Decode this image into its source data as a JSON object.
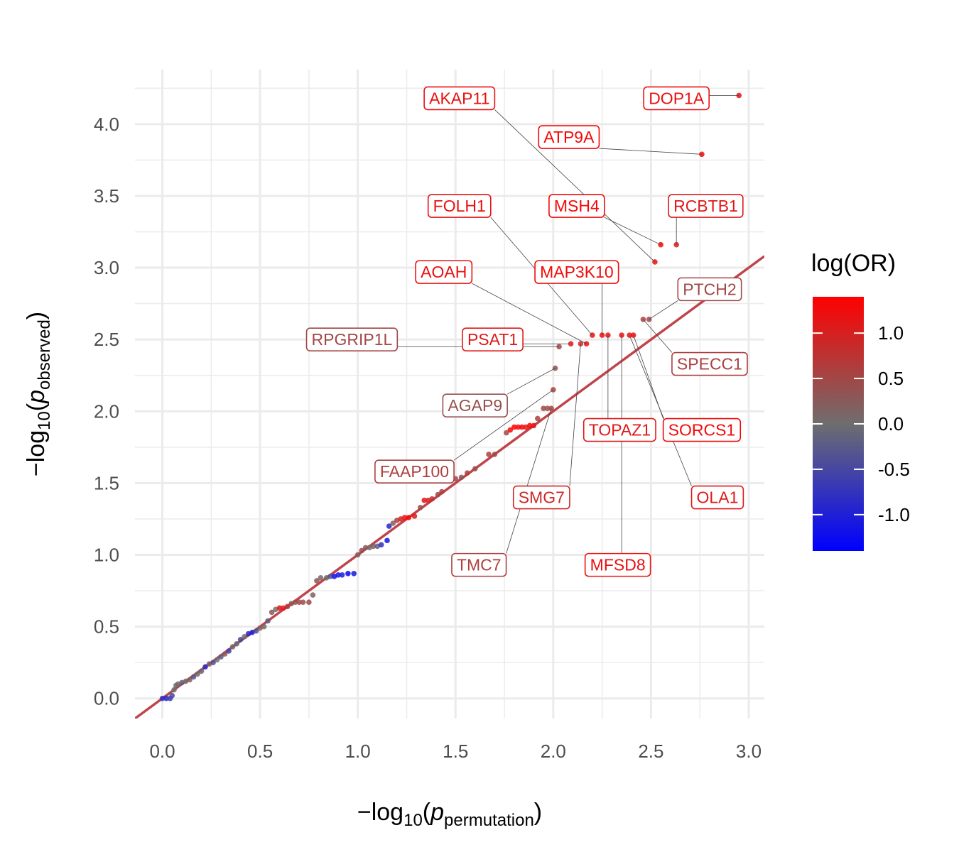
{
  "chart_data": {
    "type": "scatter",
    "title": "",
    "xlabel": "−log10(p permutation)",
    "ylabel": "−log10(p observed)",
    "xlabel_parts": {
      "prefix": "−log",
      "sub": "10",
      "open": "(",
      "p": "p",
      "psub": "permutation",
      "close": ")"
    },
    "ylabel_parts": {
      "prefix": "−log",
      "sub": "10",
      "open": "(",
      "p": "p",
      "psub": "observed",
      "close": ")"
    },
    "xlim": [
      -0.14,
      3.08
    ],
    "ylim": [
      -0.14,
      4.38
    ],
    "x_ticks": [
      0.0,
      0.5,
      1.0,
      1.5,
      2.0,
      2.5,
      3.0
    ],
    "x_tick_labels": [
      "0.0",
      "0.5",
      "1.0",
      "1.5",
      "2.0",
      "2.5",
      "3.0"
    ],
    "y_ticks": [
      0.0,
      0.5,
      1.0,
      1.5,
      2.0,
      2.5,
      3.0,
      3.5,
      4.0
    ],
    "y_tick_labels": [
      "0.0",
      "0.5",
      "1.0",
      "1.5",
      "2.0",
      "2.5",
      "3.0",
      "3.5",
      "4.0"
    ],
    "grid": true,
    "reference_line": {
      "slope": 1,
      "intercept": 0,
      "color": "#c0444a"
    },
    "color_scale": {
      "title": "log(OR)",
      "min": -1.4,
      "max": 1.4,
      "low_color": "#0000ff",
      "mid_color": "#6e6e6e",
      "high_color": "#ff0000",
      "ticks": [
        1.0,
        0.5,
        0.0,
        -0.5,
        -1.0
      ],
      "tick_labels": [
        "1.0",
        "0.5",
        "0.0",
        "-0.5",
        "-1.0"
      ],
      "legend_position": "right"
    },
    "points": [
      {
        "x": 0.0,
        "y": 0.0,
        "c": -0.8
      },
      {
        "x": 0.02,
        "y": 0.0,
        "c": -0.9
      },
      {
        "x": 0.04,
        "y": 0.0,
        "c": -0.7
      },
      {
        "x": 0.05,
        "y": 0.02,
        "c": -0.5
      },
      {
        "x": 0.06,
        "y": 0.06,
        "c": 0.0
      },
      {
        "x": 0.07,
        "y": 0.09,
        "c": -0.1
      },
      {
        "x": 0.08,
        "y": 0.1,
        "c": 0.1
      },
      {
        "x": 0.1,
        "y": 0.11,
        "c": -0.2
      },
      {
        "x": 0.12,
        "y": 0.12,
        "c": 0.0
      },
      {
        "x": 0.14,
        "y": 0.13,
        "c": 0.2
      },
      {
        "x": 0.16,
        "y": 0.15,
        "c": -0.3
      },
      {
        "x": 0.18,
        "y": 0.17,
        "c": 0.1
      },
      {
        "x": 0.2,
        "y": 0.19,
        "c": -0.1
      },
      {
        "x": 0.22,
        "y": 0.22,
        "c": -0.9
      },
      {
        "x": 0.24,
        "y": 0.24,
        "c": 0.2
      },
      {
        "x": 0.26,
        "y": 0.25,
        "c": -0.4
      },
      {
        "x": 0.28,
        "y": 0.27,
        "c": 0.0
      },
      {
        "x": 0.3,
        "y": 0.29,
        "c": -0.2
      },
      {
        "x": 0.32,
        "y": 0.31,
        "c": 0.3
      },
      {
        "x": 0.34,
        "y": 0.33,
        "c": -0.6
      },
      {
        "x": 0.36,
        "y": 0.36,
        "c": 0.1
      },
      {
        "x": 0.38,
        "y": 0.38,
        "c": -0.1
      },
      {
        "x": 0.4,
        "y": 0.41,
        "c": -0.5
      },
      {
        "x": 0.42,
        "y": 0.43,
        "c": 0.0
      },
      {
        "x": 0.44,
        "y": 0.45,
        "c": -0.9
      },
      {
        "x": 0.46,
        "y": 0.46,
        "c": -1.0
      },
      {
        "x": 0.48,
        "y": 0.47,
        "c": -0.4
      },
      {
        "x": 0.5,
        "y": 0.49,
        "c": 0.2
      },
      {
        "x": 0.52,
        "y": 0.5,
        "c": 0.1
      },
      {
        "x": 0.54,
        "y": 0.54,
        "c": -0.2
      },
      {
        "x": 0.56,
        "y": 0.6,
        "c": 0.3
      },
      {
        "x": 0.58,
        "y": 0.62,
        "c": 0.0
      },
      {
        "x": 0.6,
        "y": 0.63,
        "c": 1.2
      },
      {
        "x": 0.62,
        "y": 0.63,
        "c": 1.0
      },
      {
        "x": 0.64,
        "y": 0.64,
        "c": 0.8
      },
      {
        "x": 0.66,
        "y": 0.66,
        "c": 0.3
      },
      {
        "x": 0.68,
        "y": 0.67,
        "c": 0.4
      },
      {
        "x": 0.7,
        "y": 0.67,
        "c": 0.5
      },
      {
        "x": 0.72,
        "y": 0.67,
        "c": 0.4
      },
      {
        "x": 0.75,
        "y": 0.67,
        "c": 0.5
      },
      {
        "x": 0.77,
        "y": 0.72,
        "c": 0.2
      },
      {
        "x": 0.79,
        "y": 0.82,
        "c": 0.3
      },
      {
        "x": 0.81,
        "y": 0.84,
        "c": 0.1
      },
      {
        "x": 0.84,
        "y": 0.84,
        "c": 0.0
      },
      {
        "x": 0.86,
        "y": 0.85,
        "c": -0.3
      },
      {
        "x": 0.88,
        "y": 0.85,
        "c": -1.2
      },
      {
        "x": 0.9,
        "y": 0.86,
        "c": -1.1
      },
      {
        "x": 0.92,
        "y": 0.86,
        "c": -1.0
      },
      {
        "x": 0.95,
        "y": 0.87,
        "c": -1.3
      },
      {
        "x": 0.98,
        "y": 0.87,
        "c": -1.1
      },
      {
        "x": 1.0,
        "y": 1.0,
        "c": 0.2
      },
      {
        "x": 1.02,
        "y": 1.03,
        "c": 0.4
      },
      {
        "x": 1.04,
        "y": 1.05,
        "c": 0.3
      },
      {
        "x": 1.06,
        "y": 1.05,
        "c": 0.0
      },
      {
        "x": 1.08,
        "y": 1.06,
        "c": 0.2
      },
      {
        "x": 1.1,
        "y": 1.06,
        "c": -0.2
      },
      {
        "x": 1.12,
        "y": 1.07,
        "c": -0.8
      },
      {
        "x": 1.15,
        "y": 1.1,
        "c": -1.1
      },
      {
        "x": 1.16,
        "y": 1.2,
        "c": -0.9
      },
      {
        "x": 1.18,
        "y": 1.22,
        "c": 0.2
      },
      {
        "x": 1.2,
        "y": 1.24,
        "c": 0.6
      },
      {
        "x": 1.22,
        "y": 1.25,
        "c": 1.0
      },
      {
        "x": 1.24,
        "y": 1.26,
        "c": 1.2
      },
      {
        "x": 1.26,
        "y": 1.26,
        "c": 1.3
      },
      {
        "x": 1.29,
        "y": 1.27,
        "c": 1.1
      },
      {
        "x": 1.32,
        "y": 1.33,
        "c": 0.4
      },
      {
        "x": 1.34,
        "y": 1.38,
        "c": 1.2
      },
      {
        "x": 1.36,
        "y": 1.38,
        "c": 1.0
      },
      {
        "x": 1.38,
        "y": 1.39,
        "c": 0.8
      },
      {
        "x": 1.41,
        "y": 1.42,
        "c": 0.5
      },
      {
        "x": 1.43,
        "y": 1.44,
        "c": 0.6
      },
      {
        "x": 1.5,
        "y": 1.53,
        "c": 0.5
      },
      {
        "x": 1.53,
        "y": 1.54,
        "c": 0.3
      },
      {
        "x": 1.56,
        "y": 1.57,
        "c": 0.6
      },
      {
        "x": 1.6,
        "y": 1.6,
        "c": 0.4
      },
      {
        "x": 1.67,
        "y": 1.7,
        "c": 0.6
      },
      {
        "x": 1.7,
        "y": 1.7,
        "c": 0.5
      },
      {
        "x": 1.76,
        "y": 1.85,
        "c": 0.5
      },
      {
        "x": 1.78,
        "y": 1.87,
        "c": 1.3
      },
      {
        "x": 1.8,
        "y": 1.89,
        "c": 1.4
      },
      {
        "x": 1.82,
        "y": 1.89,
        "c": 1.3
      },
      {
        "x": 1.84,
        "y": 1.89,
        "c": 1.4
      },
      {
        "x": 1.86,
        "y": 1.89,
        "c": 1.2
      },
      {
        "x": 1.88,
        "y": 1.9,
        "c": 1.4
      },
      {
        "x": 1.9,
        "y": 1.9,
        "c": 1.1
      },
      {
        "x": 1.92,
        "y": 1.95,
        "c": 0.6
      },
      {
        "x": 1.95,
        "y": 2.02,
        "c": 0.5
      },
      {
        "x": 1.97,
        "y": 2.02,
        "c": 0.4
      },
      {
        "x": 1.99,
        "y": 2.02,
        "c": 0.6
      },
      {
        "x": 2.0,
        "y": 2.15,
        "c": 0.6
      },
      {
        "x": 2.01,
        "y": 2.3,
        "c": 0.4
      },
      {
        "x": 2.03,
        "y": 2.45,
        "c": 0.5
      },
      {
        "x": 2.09,
        "y": 2.47,
        "c": 1.1
      },
      {
        "x": 2.14,
        "y": 2.47,
        "c": 0.9
      },
      {
        "x": 2.17,
        "y": 2.47,
        "c": 1.2
      },
      {
        "x": 2.2,
        "y": 2.53,
        "c": 1.2
      },
      {
        "x": 2.25,
        "y": 2.53,
        "c": 1.3
      },
      {
        "x": 2.28,
        "y": 2.53,
        "c": 1.1
      },
      {
        "x": 2.35,
        "y": 2.53,
        "c": 1.2
      },
      {
        "x": 2.39,
        "y": 2.53,
        "c": 1.1
      },
      {
        "x": 2.41,
        "y": 2.53,
        "c": 1.3
      },
      {
        "x": 2.46,
        "y": 2.64,
        "c": 0.6
      },
      {
        "x": 2.49,
        "y": 2.64,
        "c": 0.5
      },
      {
        "x": 2.52,
        "y": 3.04,
        "c": 1.2
      },
      {
        "x": 2.55,
        "y": 3.16,
        "c": 1.3
      },
      {
        "x": 2.63,
        "y": 3.16,
        "c": 1.1
      },
      {
        "x": 2.76,
        "y": 3.79,
        "c": 1.3
      },
      {
        "x": 2.95,
        "y": 4.2,
        "c": 1.2
      }
    ],
    "annotations": [
      {
        "label": "AKAP11",
        "lx": 1.52,
        "ly": 4.18,
        "px": 2.52,
        "py": 3.04,
        "c": 1.2
      },
      {
        "label": "DOP1A",
        "lx": 2.63,
        "ly": 4.18,
        "px": 2.95,
        "py": 4.2,
        "c": 1.2
      },
      {
        "label": "ATP9A",
        "lx": 2.08,
        "ly": 3.91,
        "px": 2.76,
        "py": 3.79,
        "c": 1.3
      },
      {
        "label": "FOLH1",
        "lx": 1.52,
        "ly": 3.43,
        "px": 2.2,
        "py": 2.53,
        "c": 1.2
      },
      {
        "label": "MSH4",
        "lx": 2.12,
        "ly": 3.43,
        "px": 2.55,
        "py": 3.16,
        "c": 1.3
      },
      {
        "label": "RCBTB1",
        "lx": 2.78,
        "ly": 3.43,
        "px": 2.63,
        "py": 3.16,
        "c": 1.1
      },
      {
        "label": "AOAH",
        "lx": 1.44,
        "ly": 2.97,
        "px": 2.17,
        "py": 2.47,
        "c": 1.2
      },
      {
        "label": "MAP3K10",
        "lx": 2.12,
        "ly": 2.97,
        "px": 2.25,
        "py": 2.53,
        "c": 1.3
      },
      {
        "label": "PTCH2",
        "lx": 2.8,
        "ly": 2.85,
        "px": 2.49,
        "py": 2.64,
        "c": 0.5
      },
      {
        "label": "RPGRIP1L",
        "lx": 0.97,
        "ly": 2.5,
        "px": 2.03,
        "py": 2.45,
        "c": 0.5
      },
      {
        "label": "PSAT1",
        "lx": 1.69,
        "ly": 2.5,
        "px": 2.09,
        "py": 2.47,
        "c": 1.1
      },
      {
        "label": "SPECC1",
        "lx": 2.8,
        "ly": 2.33,
        "px": 2.46,
        "py": 2.64,
        "c": 0.6
      },
      {
        "label": "AGAP9",
        "lx": 1.6,
        "ly": 2.04,
        "px": 2.01,
        "py": 2.3,
        "c": 0.4
      },
      {
        "label": "TOPAZ1",
        "lx": 2.34,
        "ly": 1.87,
        "px": 2.28,
        "py": 2.53,
        "c": 1.1
      },
      {
        "label": "SORCS1",
        "lx": 2.76,
        "ly": 1.87,
        "px": 2.41,
        "py": 2.53,
        "c": 1.3
      },
      {
        "label": "FAAP100",
        "lx": 1.29,
        "ly": 1.58,
        "px": 2.0,
        "py": 2.15,
        "c": 0.6
      },
      {
        "label": "SMG7",
        "lx": 1.94,
        "ly": 1.4,
        "px": 2.14,
        "py": 2.47,
        "c": 0.9
      },
      {
        "label": "OLA1",
        "lx": 2.84,
        "ly": 1.4,
        "px": 2.39,
        "py": 2.53,
        "c": 1.1
      },
      {
        "label": "TMC7",
        "lx": 1.62,
        "ly": 0.93,
        "px": 1.99,
        "py": 2.02,
        "c": 0.6
      },
      {
        "label": "MFSD8",
        "lx": 2.33,
        "ly": 0.93,
        "px": 2.35,
        "py": 2.53,
        "c": 1.2
      }
    ]
  }
}
